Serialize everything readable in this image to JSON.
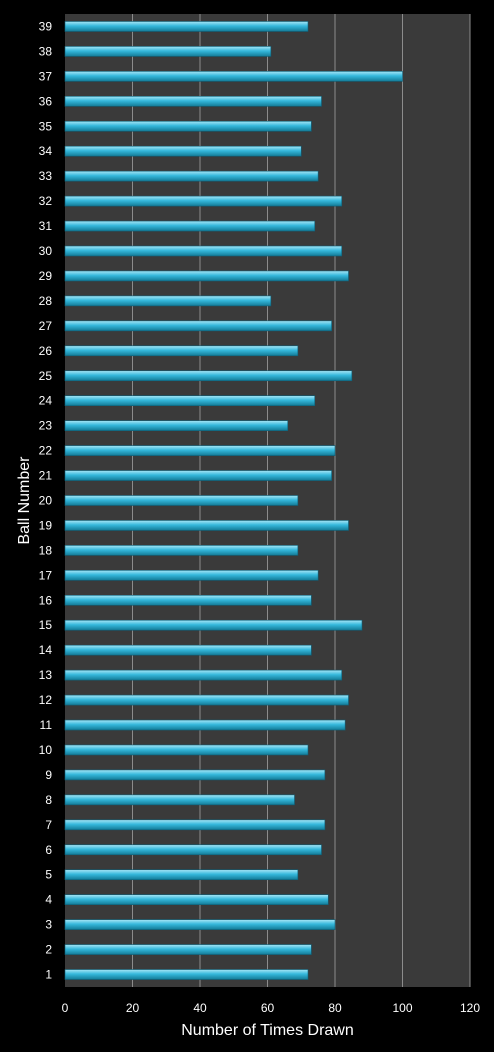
{
  "chart_data": {
    "type": "bar",
    "orientation": "horizontal",
    "title": "",
    "xlabel": "Number of Times Drawn",
    "ylabel": "Ball Number",
    "xlim": [
      0,
      120
    ],
    "xticks": [
      0,
      20,
      40,
      60,
      80,
      100,
      120
    ],
    "grid": "vertical",
    "legend": "none",
    "categories": [
      "1",
      "2",
      "3",
      "4",
      "5",
      "6",
      "7",
      "8",
      "9",
      "10",
      "11",
      "12",
      "13",
      "14",
      "15",
      "16",
      "17",
      "18",
      "19",
      "20",
      "21",
      "22",
      "23",
      "24",
      "25",
      "26",
      "27",
      "28",
      "29",
      "30",
      "31",
      "32",
      "33",
      "34",
      "35",
      "36",
      "37",
      "38",
      "39"
    ],
    "values": [
      72,
      73,
      80,
      78,
      69,
      76,
      77,
      68,
      77,
      72,
      83,
      84,
      82,
      73,
      88,
      73,
      75,
      69,
      84,
      69,
      79,
      80,
      66,
      74,
      85,
      69,
      79,
      61,
      84,
      82,
      74,
      82,
      75,
      70,
      73,
      76,
      100,
      61,
      72
    ],
    "colors": {
      "background": "#000000",
      "plot_area": "#3a3a3a",
      "gridline": "#8c8c8c",
      "bar": "#35b8dc",
      "bar_highlight": "#a8e6f6",
      "bar_shadow": "#137a96",
      "text": "#ffffff"
    }
  }
}
